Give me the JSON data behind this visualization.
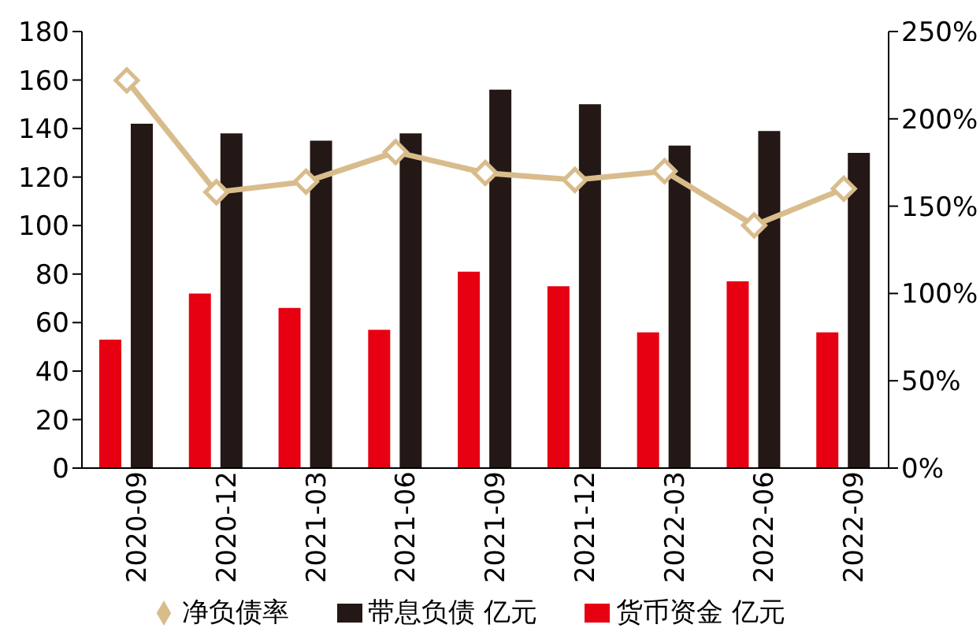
{
  "chart_data": {
    "type": "bar",
    "categories": [
      "2020-09",
      "2020-12",
      "2021-03",
      "2021-06",
      "2021-09",
      "2021-12",
      "2022-03",
      "2022-06",
      "2022-09"
    ],
    "series": [
      {
        "name": "货币资金 亿元",
        "color": "#e60012",
        "values": [
          53,
          72,
          66,
          57,
          81,
          75,
          56,
          77,
          56
        ]
      },
      {
        "name": "带息负债 亿元",
        "color": "#231815",
        "values": [
          142,
          138,
          135,
          138,
          156,
          150,
          133,
          139,
          130
        ]
      },
      {
        "name": "净负债率",
        "type": "line",
        "axis": "y2",
        "color": "#d9bc8c",
        "marker": "diamond",
        "values": [
          222,
          158,
          164,
          181,
          169,
          165,
          170,
          139,
          160
        ]
      }
    ],
    "ylim": [
      0,
      180
    ],
    "yticks": [
      0,
      20,
      40,
      60,
      80,
      100,
      120,
      140,
      160,
      180
    ],
    "y2lim": [
      0,
      250
    ],
    "y2ticks": [
      {
        "value": 0,
        "label": "0%"
      },
      {
        "value": 50,
        "label": "50%"
      },
      {
        "value": 100,
        "label": "100%"
      },
      {
        "value": 150,
        "label": "150%"
      },
      {
        "value": 200,
        "label": "200%"
      },
      {
        "value": 250,
        "label": "250%"
      }
    ],
    "grid": false,
    "legend": "bottom"
  }
}
